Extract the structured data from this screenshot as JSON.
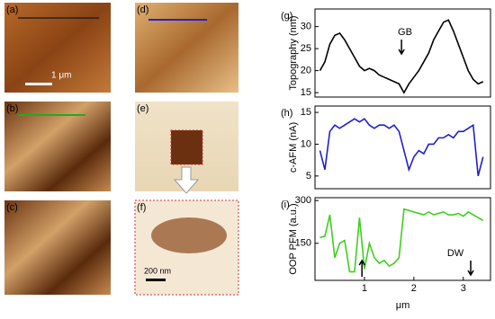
{
  "panels": [
    {
      "label": "(a)"
    },
    {
      "label": "(b)"
    },
    {
      "label": "(c)"
    },
    {
      "label": "(d)"
    },
    {
      "label": "(e)"
    },
    {
      "label": "(f)"
    }
  ],
  "scale_bars": [
    "1 μm",
    "200 nm"
  ],
  "chart_data": [
    {
      "type": "line",
      "panel": "(g)",
      "y_label": "Topography (nm)",
      "color": "#000000",
      "x": [
        0.1,
        0.2,
        0.3,
        0.4,
        0.5,
        0.6,
        0.7,
        0.8,
        0.9,
        1.0,
        1.1,
        1.2,
        1.3,
        1.4,
        1.5,
        1.6,
        1.7,
        1.8,
        1.9,
        2.0,
        2.1,
        2.2,
        2.3,
        2.4,
        2.5,
        2.6,
        2.7,
        2.8,
        2.9,
        3.0,
        3.1,
        3.2,
        3.3,
        3.4
      ],
      "values": [
        20,
        22,
        26,
        28,
        28.5,
        27,
        25,
        23,
        21,
        20,
        20.5,
        20,
        19,
        18.5,
        18,
        17.5,
        17,
        15,
        17,
        18.5,
        20,
        22,
        24,
        27,
        29,
        31,
        31.5,
        29,
        26,
        23,
        20,
        18,
        17,
        17.5
      ],
      "xlim": [
        0,
        3.55
      ],
      "ylim": [
        14,
        34
      ],
      "yticks": [
        15,
        20,
        25,
        30
      ],
      "annotations": [
        "GB"
      ]
    },
    {
      "type": "line",
      "panel": "(h)",
      "y_label": "c-AFM (nA)",
      "color": "#1f1fd0",
      "x": [
        0.1,
        0.2,
        0.3,
        0.4,
        0.5,
        0.6,
        0.7,
        0.8,
        0.9,
        1.0,
        1.1,
        1.2,
        1.3,
        1.4,
        1.5,
        1.6,
        1.7,
        1.8,
        1.9,
        2.0,
        2.1,
        2.2,
        2.3,
        2.4,
        2.5,
        2.6,
        2.7,
        2.8,
        2.9,
        3.0,
        3.1,
        3.2,
        3.3,
        3.4
      ],
      "values": [
        9,
        6,
        12,
        13,
        12.5,
        13,
        13.5,
        14,
        13.5,
        14,
        13,
        12.5,
        13,
        13,
        12.5,
        13,
        12,
        9,
        6,
        8,
        9,
        8.5,
        10,
        10,
        11,
        11,
        11.5,
        11,
        12,
        12,
        12.5,
        13,
        5,
        8
      ],
      "xlim": [
        0,
        3.55
      ],
      "ylim": [
        3,
        16
      ],
      "yticks": [
        5,
        10,
        15
      ],
      "annotations": []
    },
    {
      "type": "line",
      "panel": "(i)",
      "y_label": "OOP PFM (a.u.)",
      "x_label": "μm",
      "color": "#3fcf1f",
      "x": [
        0.1,
        0.2,
        0.3,
        0.4,
        0.5,
        0.6,
        0.7,
        0.8,
        0.9,
        1.0,
        1.1,
        1.2,
        1.3,
        1.4,
        1.5,
        1.6,
        1.7,
        1.8,
        1.9,
        2.0,
        2.1,
        2.2,
        2.3,
        2.4,
        2.5,
        2.6,
        2.7,
        2.8,
        2.9,
        3.0,
        3.1,
        3.2,
        3.3,
        3.4
      ],
      "values": [
        170,
        175,
        250,
        100,
        150,
        160,
        50,
        50,
        240,
        60,
        150,
        100,
        80,
        90,
        70,
        80,
        100,
        270,
        265,
        260,
        255,
        250,
        260,
        250,
        255,
        260,
        250,
        250,
        255,
        245,
        260,
        250,
        240,
        230
      ],
      "xlim": [
        0,
        3.55
      ],
      "ylim": [
        20,
        310
      ],
      "yticks": [
        150,
        300
      ],
      "xticks": [
        1,
        2,
        3
      ],
      "annotations": [
        "DW"
      ]
    }
  ]
}
